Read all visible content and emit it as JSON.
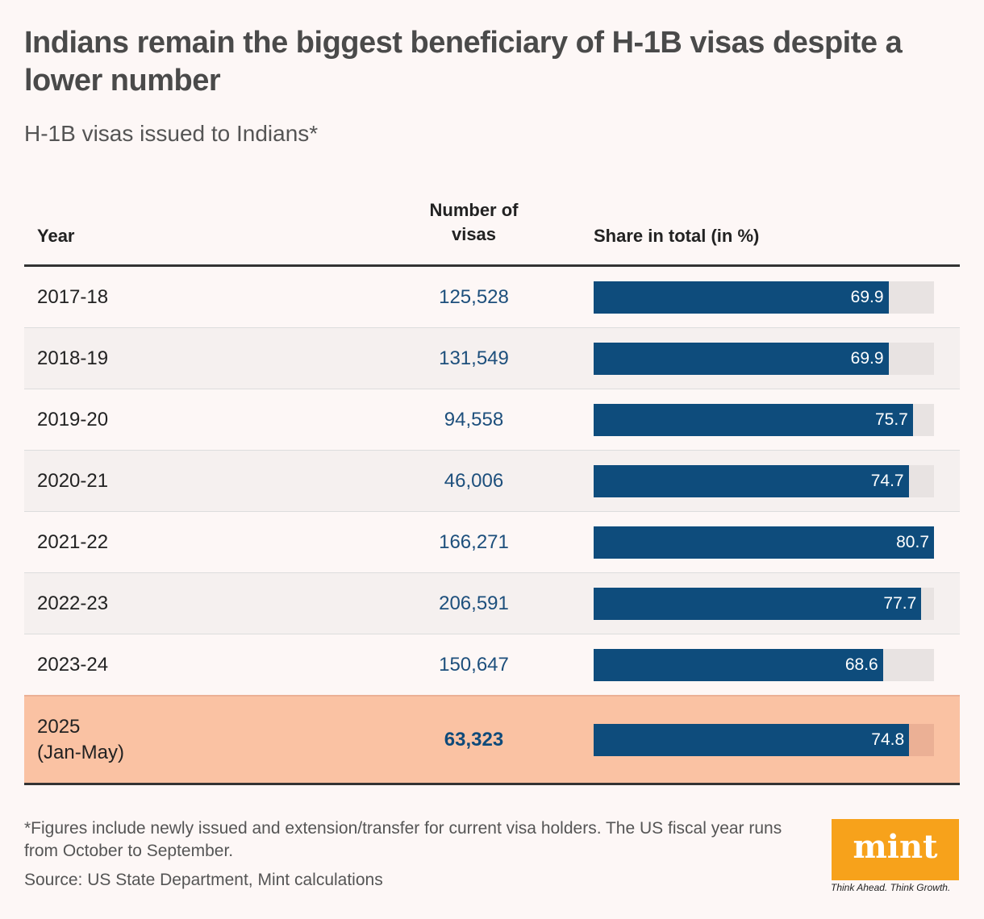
{
  "title": "Indians remain the biggest beneficiary of H-1B visas despite a lower number",
  "subtitle": "H-1B visas issued to Indians*",
  "chart_data": {
    "type": "table",
    "columns": [
      "Year",
      "Number of visas",
      "Share in total (in %)"
    ],
    "rows": [
      {
        "year": "2017-18",
        "visas": "125,528",
        "share": 69.9
      },
      {
        "year": "2018-19",
        "visas": "131,549",
        "share": 69.9
      },
      {
        "year": "2019-20",
        "visas": "94,558",
        "share": 75.7
      },
      {
        "year": "2020-21",
        "visas": "46,006",
        "share": 74.7
      },
      {
        "year": "2021-22",
        "visas": "166,271",
        "share": 80.7
      },
      {
        "year": "2022-23",
        "visas": "206,591",
        "share": 77.7
      },
      {
        "year": "2023-24",
        "visas": "150,647",
        "share": 68.6
      },
      {
        "year": "2025\n(Jan-May)",
        "visas": "63,323",
        "share": 74.8,
        "highlighted": true
      }
    ],
    "bar_color": "#0e4c7c",
    "highlight_color": "#fac2a3"
  },
  "footnote": "*Figures include newly issued and extension/transfer for current visa holders. The US fiscal year runs from October to September.",
  "source": "Source: US State Department, Mint calculations",
  "logo": {
    "text": "mint",
    "tagline": "Think Ahead. Think Growth.",
    "color": "#f7a21b"
  }
}
